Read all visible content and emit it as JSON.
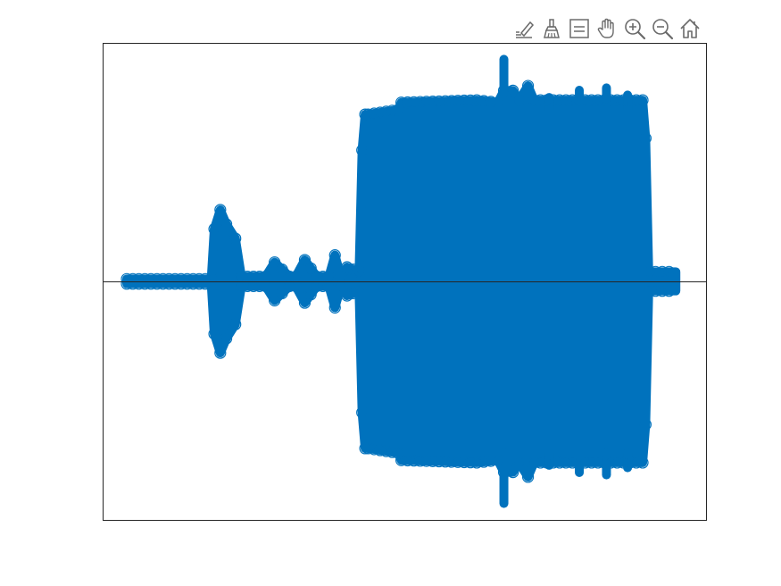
{
  "toolbar": {
    "tools": [
      {
        "name": "data-tips",
        "icon": "edit-datatip-icon"
      },
      {
        "name": "brush",
        "icon": "brush-icon"
      },
      {
        "name": "legend",
        "icon": "legend-icon"
      },
      {
        "name": "pan",
        "icon": "hand-icon"
      },
      {
        "name": "zoom-in",
        "icon": "zoom-in-icon"
      },
      {
        "name": "zoom-out",
        "icon": "zoom-out-icon"
      },
      {
        "name": "restore-view",
        "icon": "home-icon"
      }
    ],
    "icon_color": "#6b6b6b"
  },
  "chart_data": {
    "type": "scatter",
    "marker": "circle",
    "title": "",
    "xlabel": "",
    "ylabel": "",
    "xlim": [
      0,
      1
    ],
    "ylim": [
      -1,
      1
    ],
    "grid": false,
    "ticks_visible": false,
    "legend": "none",
    "zero_line": true,
    "series_color": "#0072bd",
    "axes_color": "#262626",
    "envelope": [
      {
        "x": 0.04,
        "amp": 0.01
      },
      {
        "x": 0.18,
        "amp": 0.01
      },
      {
        "x": 0.185,
        "amp": 0.22
      },
      {
        "x": 0.195,
        "amp": 0.3
      },
      {
        "x": 0.205,
        "amp": 0.24
      },
      {
        "x": 0.22,
        "amp": 0.18
      },
      {
        "x": 0.23,
        "amp": 0.02
      },
      {
        "x": 0.27,
        "amp": 0.02
      },
      {
        "x": 0.285,
        "amp": 0.08
      },
      {
        "x": 0.31,
        "amp": 0.02
      },
      {
        "x": 0.32,
        "amp": 0.02
      },
      {
        "x": 0.335,
        "amp": 0.09
      },
      {
        "x": 0.355,
        "amp": 0.02
      },
      {
        "x": 0.375,
        "amp": 0.02
      },
      {
        "x": 0.385,
        "amp": 0.11
      },
      {
        "x": 0.395,
        "amp": 0.02
      },
      {
        "x": 0.405,
        "amp": 0.06
      },
      {
        "x": 0.425,
        "amp": 0.04
      },
      {
        "x": 0.43,
        "amp": 0.55
      },
      {
        "x": 0.435,
        "amp": 0.7
      },
      {
        "x": 0.44,
        "amp": 0.7
      },
      {
        "x": 0.49,
        "amp": 0.72
      },
      {
        "x": 0.495,
        "amp": 0.75
      },
      {
        "x": 0.62,
        "amp": 0.76
      },
      {
        "x": 0.655,
        "amp": 0.75
      },
      {
        "x": 0.665,
        "amp": 0.8
      },
      {
        "x": 0.68,
        "amp": 0.8
      },
      {
        "x": 0.69,
        "amp": 0.76
      },
      {
        "x": 0.705,
        "amp": 0.82
      },
      {
        "x": 0.715,
        "amp": 0.76
      },
      {
        "x": 0.895,
        "amp": 0.76
      },
      {
        "x": 0.9,
        "amp": 0.6
      },
      {
        "x": 0.905,
        "amp": 0.04
      },
      {
        "x": 0.95,
        "amp": 0.04
      }
    ],
    "spikes": [
      {
        "x": 0.665,
        "amp": 0.95
      },
      {
        "x": 0.74,
        "amp": 0.79
      },
      {
        "x": 0.79,
        "amp": 0.82
      },
      {
        "x": 0.835,
        "amp": 0.83
      },
      {
        "x": 0.87,
        "amp": 0.8
      }
    ]
  }
}
